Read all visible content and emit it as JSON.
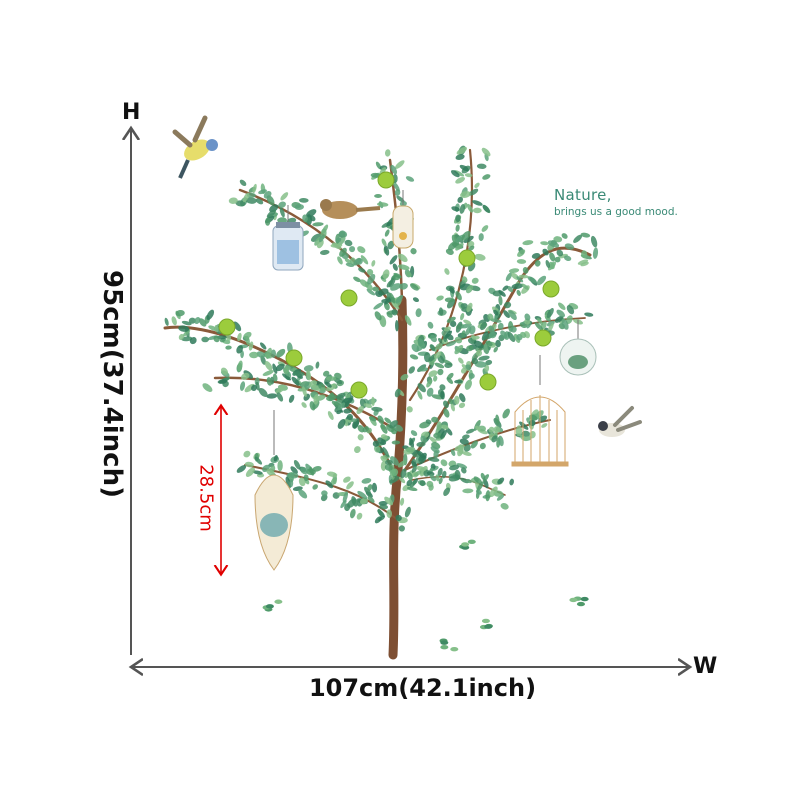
{
  "dimensions": {
    "height_axis_letter": "H",
    "width_axis_letter": "W",
    "height_text": "95cm(37.4inch)",
    "width_text": "107cm(42.1inch)",
    "sub_height_text": "28.5cm"
  },
  "quote": {
    "title": "Nature,",
    "subtitle": "brings us  a good mood."
  },
  "colors": {
    "dimension_line": "#555555",
    "sub_dimension": "#e00000",
    "quote_text": "#3a8a76",
    "leaf": "#4f9a6a",
    "trunk": "#8a5a3a",
    "apple": "#9ccc3c"
  }
}
